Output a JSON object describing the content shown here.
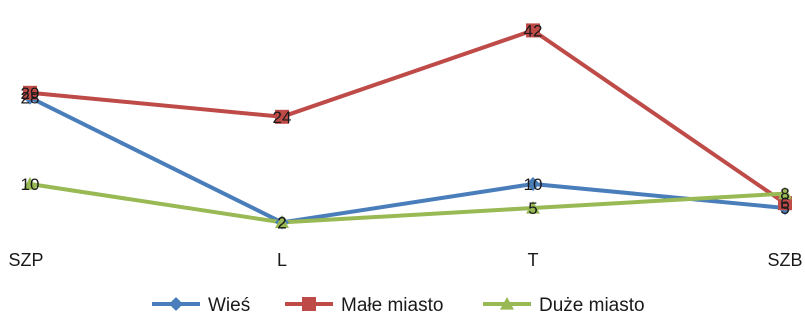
{
  "chart_data": {
    "type": "line",
    "categories": [
      "SZP",
      "L",
      "T",
      "SZB"
    ],
    "series": [
      {
        "name": "Wieś",
        "values": [
          28,
          2,
          10,
          5
        ],
        "color": "#4a7ebb",
        "marker": "diamond"
      },
      {
        "name": "Małe miasto",
        "values": [
          29,
          24,
          42,
          6
        ],
        "color": "#be4b48",
        "marker": "square"
      },
      {
        "name": "Duże miasto",
        "values": [
          10,
          2,
          5,
          8
        ],
        "color": "#98b954",
        "marker": "triangle"
      }
    ],
    "title": "",
    "xlabel": "",
    "ylabel": "",
    "ylim": [
      0,
      44
    ],
    "grid": false,
    "legend_position": "bottom"
  }
}
